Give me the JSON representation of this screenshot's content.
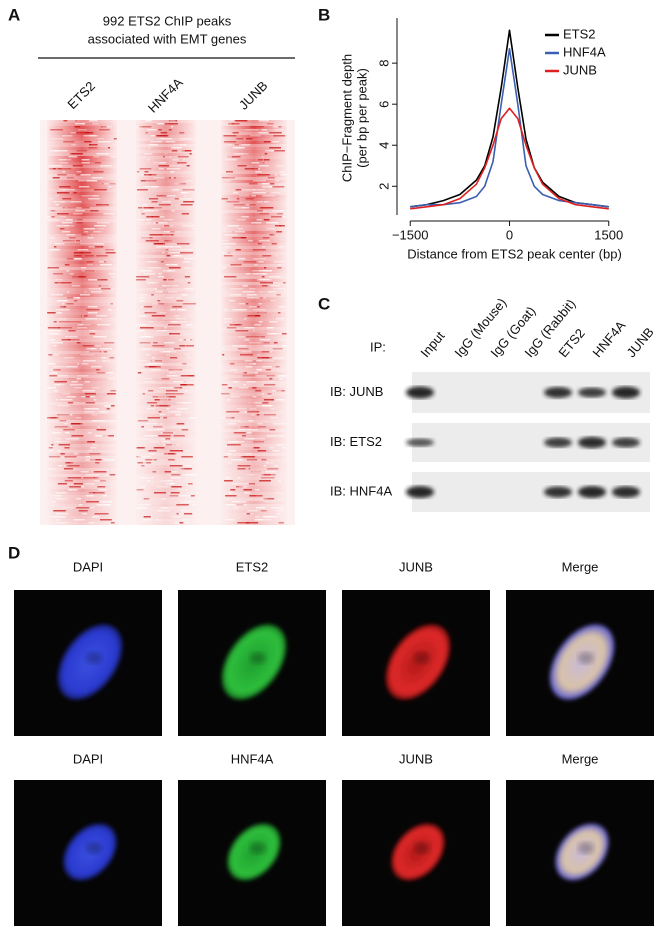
{
  "panels": {
    "a": "A",
    "b": "B",
    "c": "C",
    "d": "D"
  },
  "heatmap": {
    "title": [
      "992 ETS2 ChIP peaks",
      "associated with EMT genes"
    ],
    "columns": [
      "ETS2",
      "HNF4A",
      "JUNB"
    ]
  },
  "chart_data": {
    "type": "line",
    "ylabel": [
      "ChIP−Fragment depth",
      "(per bp per peak)"
    ],
    "xlabel": "Distance from ETS2 peak center (bp)",
    "x": [
      -1500,
      -1250,
      -1000,
      -750,
      -500,
      -375,
      -250,
      -125,
      0,
      125,
      250,
      375,
      500,
      750,
      1000,
      1250,
      1500
    ],
    "series": [
      {
        "name": "ETS2",
        "color": "#000000",
        "values": [
          1.0,
          1.1,
          1.3,
          1.6,
          2.3,
          3.0,
          4.4,
          6.8,
          9.6,
          6.8,
          4.3,
          2.9,
          2.2,
          1.5,
          1.2,
          1.1,
          1.0
        ]
      },
      {
        "name": "HNF4A",
        "color": "#3a5fb0",
        "values": [
          1.0,
          1.1,
          1.1,
          1.2,
          1.5,
          2.0,
          3.2,
          6.0,
          8.7,
          6.0,
          3.0,
          2.0,
          1.6,
          1.3,
          1.2,
          1.1,
          1.0
        ]
      },
      {
        "name": "JUNB",
        "color": "#e02020",
        "values": [
          0.9,
          1.0,
          1.1,
          1.4,
          2.1,
          2.9,
          4.0,
          5.3,
          5.8,
          5.3,
          4.0,
          2.9,
          2.1,
          1.4,
          1.1,
          1.0,
          0.9
        ]
      }
    ],
    "xlim": [
      -1700,
      1700
    ],
    "ylim": [
      0.6,
      10.2
    ],
    "xticks": [
      {
        "value": -1500,
        "label": "−1500"
      },
      0,
      1500
    ],
    "yticks": [
      2,
      4,
      6,
      8
    ],
    "legend": "upper right"
  },
  "blot": {
    "ip_label": "IP:",
    "lanes": [
      "Input",
      "IgG (Mouse)",
      "IgG (Goat)",
      "IgG (Rabbit)",
      "ETS2",
      "HNF4A",
      "JUNB"
    ],
    "rows": [
      "IB: JUNB",
      "IB: ETS2",
      "IB: HNF4A"
    ]
  },
  "microscopy": {
    "rows": [
      [
        "DAPI",
        "ETS2",
        "JUNB",
        "Merge"
      ],
      [
        "DAPI",
        "HNF4A",
        "JUNB",
        "Merge"
      ]
    ]
  }
}
